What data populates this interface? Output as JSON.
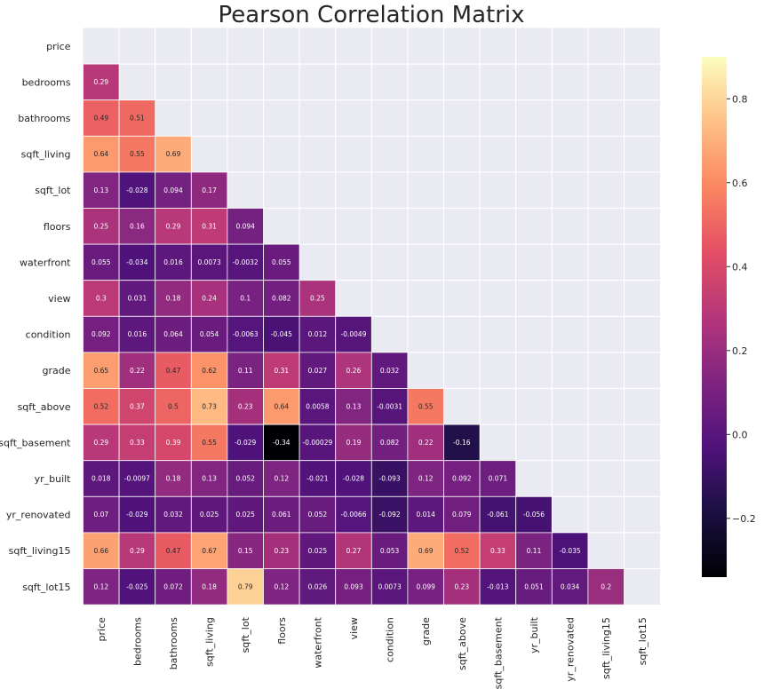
{
  "chart_data": {
    "type": "heatmap",
    "title": "Pearson Correlation Matrix",
    "variables": [
      "price",
      "bedrooms",
      "bathrooms",
      "sqft_living",
      "sqft_lot",
      "floors",
      "waterfront",
      "view",
      "condition",
      "grade",
      "sqft_above",
      "sqft_basement",
      "yr_built",
      "yr_renovated",
      "sqft_living15",
      "sqft_lot15"
    ],
    "mask": "upper-triangle-including-diagonal",
    "colormap": "magma",
    "vmin": -0.34,
    "vmax": 0.9,
    "background_color": "#eaeaf2",
    "cell_border_color": "#ffffff",
    "colorbar": {
      "ticks": [
        -0.2,
        0.0,
        0.2,
        0.4,
        0.6,
        0.8
      ],
      "tick_labels": [
        "−0.2",
        "0.0",
        "0.2",
        "0.4",
        "0.6",
        "0.8"
      ]
    },
    "rows": [
      {
        "label": "bedrooms",
        "values": [
          0.29
        ],
        "labels": [
          "0.29"
        ]
      },
      {
        "label": "bathrooms",
        "values": [
          0.49,
          0.51
        ],
        "labels": [
          "0.49",
          "0.51"
        ]
      },
      {
        "label": "sqft_living",
        "values": [
          0.64,
          0.55,
          0.69
        ],
        "labels": [
          "0.64",
          "0.55",
          "0.69"
        ]
      },
      {
        "label": "sqft_lot",
        "values": [
          0.13,
          -0.028,
          0.094,
          0.17
        ],
        "labels": [
          "0.13",
          "-0.028",
          "0.094",
          "0.17"
        ]
      },
      {
        "label": "floors",
        "values": [
          0.25,
          0.16,
          0.29,
          0.31,
          0.094
        ],
        "labels": [
          "0.25",
          "0.16",
          "0.29",
          "0.31",
          "0.094"
        ]
      },
      {
        "label": "waterfront",
        "values": [
          0.055,
          -0.034,
          0.016,
          0.0073,
          -0.0032,
          0.055
        ],
        "labels": [
          "0.055",
          "-0.034",
          "0.016",
          "0.0073",
          "-0.0032",
          "0.055"
        ]
      },
      {
        "label": "view",
        "values": [
          0.3,
          0.031,
          0.18,
          0.24,
          0.1,
          0.082,
          0.25
        ],
        "labels": [
          "0.3",
          "0.031",
          "0.18",
          "0.24",
          "0.1",
          "0.082",
          "0.25"
        ]
      },
      {
        "label": "condition",
        "values": [
          0.092,
          0.016,
          0.064,
          0.054,
          -0.0063,
          -0.045,
          0.012,
          -0.0049
        ],
        "labels": [
          "0.092",
          "0.016",
          "0.064",
          "0.054",
          "-0.0063",
          "-0.045",
          "0.012",
          "-0.0049"
        ]
      },
      {
        "label": "grade",
        "values": [
          0.65,
          0.22,
          0.47,
          0.62,
          0.11,
          0.31,
          0.027,
          0.26,
          0.032
        ],
        "labels": [
          "0.65",
          "0.22",
          "0.47",
          "0.62",
          "0.11",
          "0.31",
          "0.027",
          "0.26",
          "0.032"
        ]
      },
      {
        "label": "sqft_above",
        "values": [
          0.52,
          0.37,
          0.5,
          0.73,
          0.23,
          0.64,
          0.0058,
          0.13,
          -0.0031,
          0.55
        ],
        "labels": [
          "0.52",
          "0.37",
          "0.5",
          "0.73",
          "0.23",
          "0.64",
          "0.0058",
          "0.13",
          "-0.0031",
          "0.55"
        ]
      },
      {
        "label": "sqft_basement",
        "values": [
          0.29,
          0.33,
          0.39,
          0.55,
          -0.029,
          -0.34,
          -0.00029,
          0.19,
          0.082,
          0.22,
          -0.16
        ],
        "labels": [
          "0.29",
          "0.33",
          "0.39",
          "0.55",
          "-0.029",
          "-0.34",
          "-0.00029",
          "0.19",
          "0.082",
          "0.22",
          "-0.16"
        ]
      },
      {
        "label": "yr_built",
        "values": [
          0.018,
          -0.0097,
          0.18,
          0.13,
          0.052,
          0.12,
          -0.021,
          -0.028,
          -0.093,
          0.12,
          0.092,
          0.071
        ],
        "labels": [
          "0.018",
          "-0.0097",
          "0.18",
          "0.13",
          "0.052",
          "0.12",
          "-0.021",
          "-0.028",
          "-0.093",
          "0.12",
          "0.092",
          "0.071"
        ]
      },
      {
        "label": "yr_renovated",
        "values": [
          0.07,
          -0.029,
          0.032,
          0.025,
          0.025,
          0.061,
          0.052,
          -0.0066,
          -0.092,
          0.014,
          0.079,
          -0.061,
          -0.056
        ],
        "labels": [
          "0.07",
          "-0.029",
          "0.032",
          "0.025",
          "0.025",
          "0.061",
          "0.052",
          "-0.0066",
          "-0.092",
          "0.014",
          "0.079",
          "-0.061",
          "-0.056"
        ]
      },
      {
        "label": "sqft_living15",
        "values": [
          0.66,
          0.29,
          0.47,
          0.67,
          0.15,
          0.23,
          0.025,
          0.27,
          0.053,
          0.69,
          0.52,
          0.33,
          0.11,
          -0.035
        ],
        "labels": [
          "0.66",
          "0.29",
          "0.47",
          "0.67",
          "0.15",
          "0.23",
          "0.025",
          "0.27",
          "0.053",
          "0.69",
          "0.52",
          "0.33",
          "0.11",
          "-0.035"
        ]
      },
      {
        "label": "sqft_lot15",
        "values": [
          0.12,
          -0.025,
          0.072,
          0.18,
          0.79,
          0.12,
          0.026,
          0.093,
          0.0073,
          0.099,
          0.23,
          -0.013,
          0.051,
          0.034,
          0.2
        ],
        "labels": [
          "0.12",
          "-0.025",
          "0.072",
          "0.18",
          "0.79",
          "0.12",
          "0.026",
          "0.093",
          "0.0073",
          "0.099",
          "0.23",
          "-0.013",
          "0.051",
          "0.034",
          "0.2"
        ]
      }
    ]
  }
}
